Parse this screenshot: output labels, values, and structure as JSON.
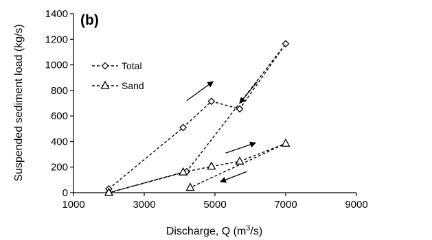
{
  "chart_data": {
    "type": "scatter",
    "panel_label": "(b)",
    "xlabel_text": "Discharge, Q (m",
    "xlabel_sup": "3",
    "xlabel_end": "/s)",
    "ylabel": "Suspended sediment load (kg/s)",
    "xlim": [
      1000,
      9000
    ],
    "ylim": [
      0,
      1400
    ],
    "x_ticks": [
      1000,
      3000,
      5000,
      7000,
      9000
    ],
    "y_ticks": [
      0,
      200,
      400,
      600,
      800,
      1000,
      1200,
      1400
    ],
    "grid": false,
    "legend_position": "upper-left",
    "series": [
      {
        "name": "Total",
        "marker": "diamond",
        "line": "dashed",
        "x": [
          2000,
          4100,
          4900,
          5700,
          7000,
          4200,
          2000
        ],
        "y": [
          30,
          510,
          715,
          655,
          1165,
          165,
          0
        ]
      },
      {
        "name": "Sand",
        "marker": "triangle",
        "line": "dashed",
        "x": [
          2000,
          4100,
          4900,
          5700,
          7000,
          4300
        ],
        "y": [
          0,
          160,
          205,
          245,
          385,
          40
        ]
      }
    ],
    "annotations": [
      {
        "type": "arrow",
        "from": [
          4200,
          720
        ],
        "to": [
          4950,
          870
        ]
      },
      {
        "type": "arrow",
        "from": [
          6200,
          870
        ],
        "to": [
          5700,
          700
        ]
      },
      {
        "type": "arrow",
        "from": [
          5300,
          310
        ],
        "to": [
          6150,
          390
        ]
      },
      {
        "type": "arrow",
        "from": [
          5900,
          165
        ],
        "to": [
          5150,
          85
        ]
      }
    ]
  }
}
